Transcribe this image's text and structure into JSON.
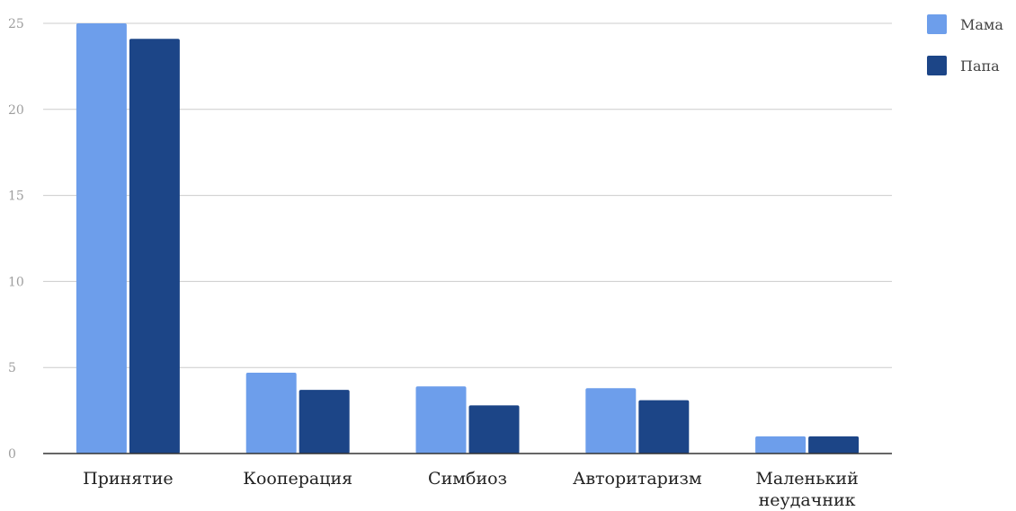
{
  "chart_data": {
    "type": "bar",
    "title": "",
    "xlabel": "",
    "ylabel": "",
    "categories": [
      "Принятие",
      "Кооперация",
      "Симбиоз",
      "Авторитаризм",
      "Маленький неудачник"
    ],
    "category_lines": [
      [
        "Принятие"
      ],
      [
        "Кооперация"
      ],
      [
        "Симбиоз"
      ],
      [
        "Авторитаризм"
      ],
      [
        "Маленький",
        "неудачник"
      ]
    ],
    "series": [
      {
        "name": "Мама",
        "color": "#6d9eeb",
        "values": [
          25,
          4.7,
          3.9,
          3.8,
          1
        ]
      },
      {
        "name": "Папа",
        "color": "#1c4587",
        "values": [
          24.1,
          3.7,
          2.8,
          3.1,
          1
        ]
      }
    ],
    "ylim": [
      0,
      25
    ],
    "yticks": [
      0,
      5,
      10,
      15,
      20,
      25
    ],
    "grid": true,
    "legend_position": "top-right"
  }
}
